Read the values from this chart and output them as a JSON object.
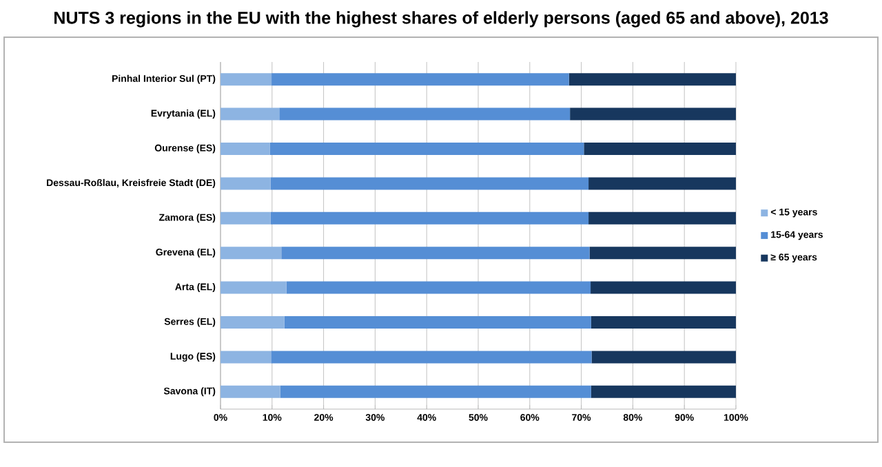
{
  "chart_data": {
    "type": "bar",
    "orientation": "horizontal",
    "stacked": true,
    "title": "NUTS 3 regions in the EU with the highest shares of elderly persons (aged 65 and above), 2013",
    "categories": [
      "Pinhal Interior Sul (PT)",
      "Evrytania (EL)",
      "Ourense (ES)",
      "Dessau-Roßlau, Kreisfreie Stadt (DE)",
      "Zamora (ES)",
      "Grevena (EL)",
      "Arta (EL)",
      "Serres (EL)",
      "Lugo (ES)",
      "Savona (IT)"
    ],
    "series": [
      {
        "name": "< 15 years",
        "color": "#8db4e2",
        "values": [
          9.9,
          11.4,
          9.6,
          9.7,
          9.7,
          11.8,
          12.8,
          12.4,
          9.8,
          11.6
        ]
      },
      {
        "name": "15-64 years",
        "color": "#558ed5",
        "values": [
          57.7,
          56.4,
          60.9,
          61.7,
          61.7,
          59.8,
          59.0,
          59.5,
          62.2,
          60.3
        ]
      },
      {
        "name": "≥ 65 years",
        "color": "#17375e",
        "values": [
          32.4,
          32.2,
          29.5,
          28.6,
          28.6,
          28.4,
          28.2,
          28.1,
          28.0,
          28.1
        ]
      }
    ],
    "xlim": [
      0,
      100
    ],
    "xticks": [
      {
        "value": 0,
        "label": "0%"
      },
      {
        "value": 10,
        "label": "10%"
      },
      {
        "value": 20,
        "label": "20%"
      },
      {
        "value": 30,
        "label": "30%"
      },
      {
        "value": 40,
        "label": "40%"
      },
      {
        "value": 50,
        "label": "50%"
      },
      {
        "value": 60,
        "label": "60%"
      },
      {
        "value": 70,
        "label": "70%"
      },
      {
        "value": 80,
        "label": "80%"
      },
      {
        "value": 90,
        "label": "90%"
      },
      {
        "value": 100,
        "label": "100%"
      }
    ],
    "grid": "x",
    "legend": "right"
  }
}
